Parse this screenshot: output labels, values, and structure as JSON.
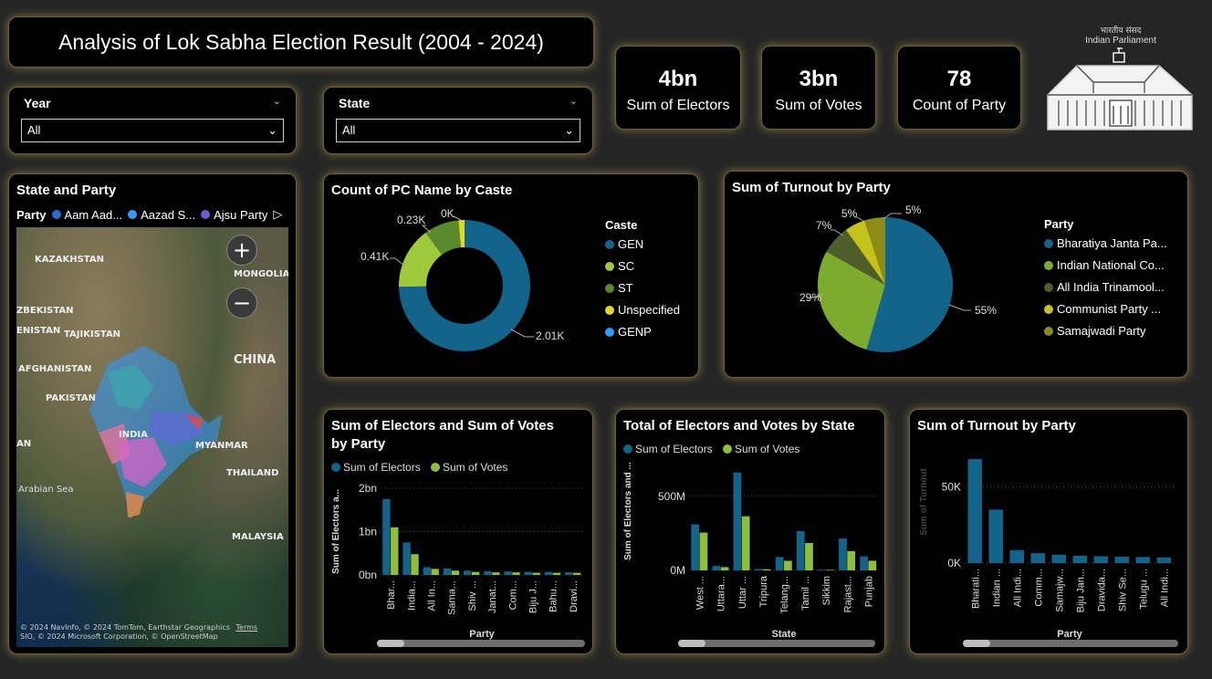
{
  "title": "Analysis of Lok Sabha Election Result (2004 - 2024)",
  "filters": {
    "year": {
      "label": "Year",
      "value": "All"
    },
    "state": {
      "label": "State",
      "value": "All"
    }
  },
  "kpis": [
    {
      "value": "4bn",
      "label": "Sum of Electors"
    },
    {
      "value": "3bn",
      "label": "Sum of Votes"
    },
    {
      "value": "78",
      "label": "Count of Party"
    }
  ],
  "logo": {
    "hindi": "भारतीय संसद",
    "english": "Indian Parliament"
  },
  "map": {
    "title": "State and Party",
    "legend_title": "Party",
    "legend": [
      {
        "name": "Aam Aad...",
        "color": "#1f6fd1"
      },
      {
        "name": "Aazad S...",
        "color": "#2f9bff"
      },
      {
        "name": "Ajsu Party",
        "color": "#6b5cd6"
      }
    ],
    "labels": [
      "KAZAKHSTAN",
      "MONGOLIA",
      "ZBEKISTAN",
      "TAJIKISTAN",
      "ENISTAN",
      "AFGHANISTAN",
      "CHINA",
      "PAKISTAN",
      "INDIA",
      "MYANMAR",
      "AN",
      "THAILAND",
      "Arabian Sea",
      "MALAYSIA"
    ],
    "attribution1": "© 2024 NavInfo, © 2024 TomTom, Earthstar Geographics",
    "terms": "Terms",
    "attribution2": "SIO, © 2024 Microsoft Corporation, © OpenStreetMap",
    "zoom_in": "+",
    "zoom_out": "−"
  },
  "caste_chart": {
    "title": "Count of PC Name by Caste",
    "legend_title": "Caste"
  },
  "turnout_pie": {
    "title": "Sum of Turnout by Party",
    "legend_title": "Party"
  },
  "electors_party": {
    "title_line1": "Sum of Electors and Sum of Votes",
    "title_line2": "by Party",
    "ylabel_short": "Sum of Electors a...",
    "scroll": ""
  },
  "electors_state": {
    "title": "Total of Electors and Votes by State",
    "ylabel_short": "Sum of Electors and ..."
  },
  "turnout_bar": {
    "title": "Sum of Turnout by Party"
  },
  "chart_data": [
    {
      "id": "caste",
      "type": "pie",
      "subtype": "donut",
      "title": "Count of PC Name by Caste",
      "categories": [
        "GEN",
        "SC",
        "ST",
        "Unspecified",
        "GENP"
      ],
      "values": [
        2010,
        410,
        230,
        40,
        0
      ],
      "value_labels": [
        "2.01K",
        "0.41K",
        "0.23K",
        "",
        "0K"
      ],
      "colors": [
        "#12648a",
        "#9dc93b",
        "#5a8a2e",
        "#e1d821",
        "#2f9bff"
      ]
    },
    {
      "id": "turnout_pie",
      "type": "pie",
      "title": "Sum of Turnout by Party",
      "categories": [
        "Bharatiya Janta Pa...",
        "Indian National Co...",
        "All India Trinamool...",
        "Communist Party ...",
        "Samajwadi Party"
      ],
      "values": [
        55,
        29,
        7,
        5,
        5
      ],
      "value_labels": [
        "55%",
        "29%",
        "7%",
        "5%",
        "5%"
      ],
      "colors": [
        "#12648a",
        "#7dab2e",
        "#4d5e2a",
        "#c3c31c",
        "#8b8b16"
      ]
    },
    {
      "id": "electors_party",
      "type": "bar",
      "title": "Sum of Electors and Sum of Votes by Party",
      "xlabel": "Party",
      "ylabel": "Sum of Electors a...",
      "categories": [
        "Bhar...",
        "India...",
        "All In...",
        "Sama...",
        "Shiv ...",
        "Janat...",
        "Com...",
        "Biju J...",
        "Bahu...",
        "Dravi..."
      ],
      "series": [
        {
          "name": "Sum of Electors",
          "color": "#12648a",
          "values": [
            1.75,
            0.75,
            0.18,
            0.15,
            0.1,
            0.09,
            0.08,
            0.07,
            0.07,
            0.06
          ]
        },
        {
          "name": "Sum of Votes",
          "color": "#8fbf3a",
          "values": [
            1.1,
            0.48,
            0.14,
            0.1,
            0.07,
            0.06,
            0.06,
            0.05,
            0.05,
            0.05
          ]
        }
      ],
      "ylim": [
        0,
        2
      ],
      "yticks": [
        0,
        1,
        2
      ],
      "ytick_labels": [
        "0bn",
        "1bn",
        "2bn"
      ]
    },
    {
      "id": "electors_state",
      "type": "bar",
      "title": "Total of Electors and Votes by State",
      "xlabel": "State",
      "ylabel": "Sum of Electors and ...",
      "categories": [
        "West ...",
        "Uttara...",
        "Uttar ...",
        "Tripura",
        "Telang...",
        "Tamil ...",
        "Sikkim",
        "Rajast...",
        "Punjab"
      ],
      "series": [
        {
          "name": "Sum of Electors",
          "color": "#12648a",
          "values": [
            310,
            30,
            660,
            10,
            90,
            265,
            5,
            215,
            95
          ]
        },
        {
          "name": "Sum of Votes",
          "color": "#8fbf3a",
          "values": [
            255,
            22,
            365,
            8,
            65,
            185,
            4,
            130,
            65
          ]
        }
      ],
      "ylim": [
        0,
        800
      ],
      "yticks": [
        0,
        500
      ],
      "ytick_labels": [
        "0M",
        "500M"
      ]
    },
    {
      "id": "turnout_bar",
      "type": "bar",
      "title": "Sum of Turnout by Party",
      "xlabel": "Party",
      "ylabel": "Sum of Turnout",
      "categories": [
        "Bharati...",
        "Indian ...",
        "All Indi...",
        "Comm...",
        "Samajw...",
        "Biju Jan...",
        "Dravida...",
        "Shiv Se...",
        "Telugu ...",
        "All Indi..."
      ],
      "series": [
        {
          "name": "Sum of Turnout",
          "color": "#12648a",
          "values": [
            68000,
            35000,
            8500,
            6500,
            5500,
            4800,
            4500,
            4200,
            4000,
            3700
          ]
        }
      ],
      "ylim": [
        0,
        80000
      ],
      "yticks": [
        0,
        50000
      ],
      "ytick_labels": [
        "0K",
        "50K"
      ]
    }
  ]
}
